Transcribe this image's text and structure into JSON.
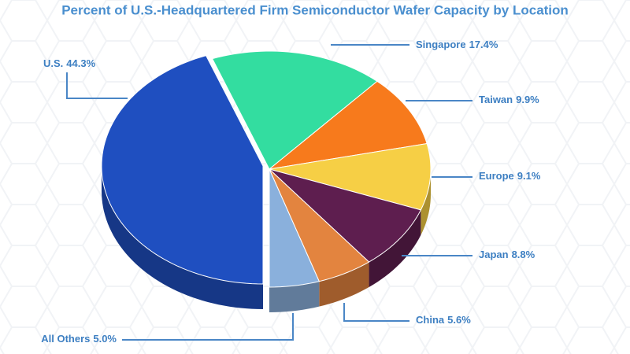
{
  "chart_data": {
    "type": "pie3d",
    "title": "Percent of U.S.-Headquartered Firm Semiconductor Wafer Capacity by Location",
    "categories": [
      "U.S.",
      "Singapore",
      "Taiwan",
      "Europe",
      "Japan",
      "China",
      "All Others"
    ],
    "values": [
      44.3,
      17.4,
      9.9,
      9.1,
      8.8,
      5.6,
      5.0
    ],
    "value_labels": [
      "44.3%",
      "17.4%",
      "9.9%",
      "9.1%",
      "8.8%",
      "5.6%",
      "5.0%"
    ],
    "colors": [
      "#1f4fc0",
      "#33dda0",
      "#f77a1c",
      "#f6cf45",
      "#5e1e4f",
      "#e3843f",
      "#8ab0dc"
    ]
  }
}
